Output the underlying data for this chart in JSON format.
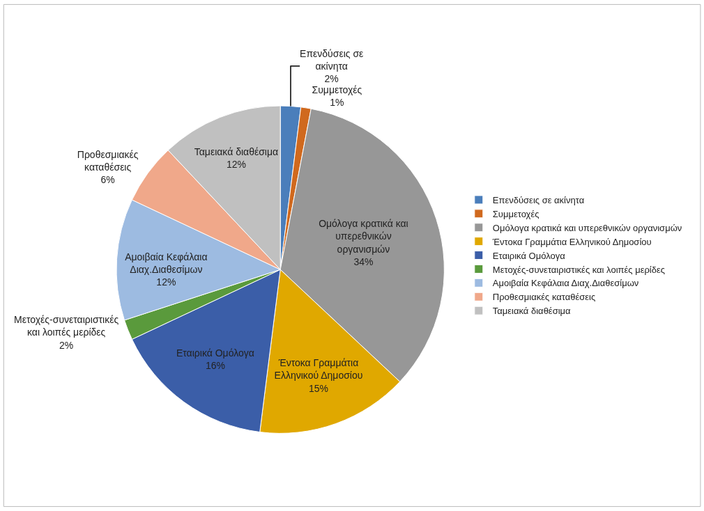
{
  "chart_data": {
    "type": "pie",
    "categories": [
      "Επενδύσεις σε ακίνητα",
      "Συμμετοχές",
      "Ομόλογα κρατικά και υπερεθνικών οργανισμών",
      "Έντοκα Γραμμάτια Ελληνικού Δημοσίου",
      "Εταιρικά Ομόλογα",
      "Μετοχές-συνεταιριστικές και λοιπές μερίδες",
      "Αμοιβαία Κεφάλαια Διαχ.Διαθεσίμων",
      "Προθεσμιακές καταθέσεις",
      "Ταμειακά διαθέσιμα"
    ],
    "values": [
      2,
      1,
      34,
      15,
      16,
      2,
      12,
      6,
      12
    ],
    "value_labels": [
      "2%",
      "1%",
      "34%",
      "15%",
      "16%",
      "2%",
      "12%",
      "6%",
      "12%"
    ],
    "colors": [
      "#4a7ebb",
      "#d0691e",
      "#979797",
      "#e0a800",
      "#3b5ea8",
      "#5a9a3c",
      "#9dbbe1",
      "#f0a88a",
      "#c0c0c0"
    ],
    "legend": "right"
  }
}
